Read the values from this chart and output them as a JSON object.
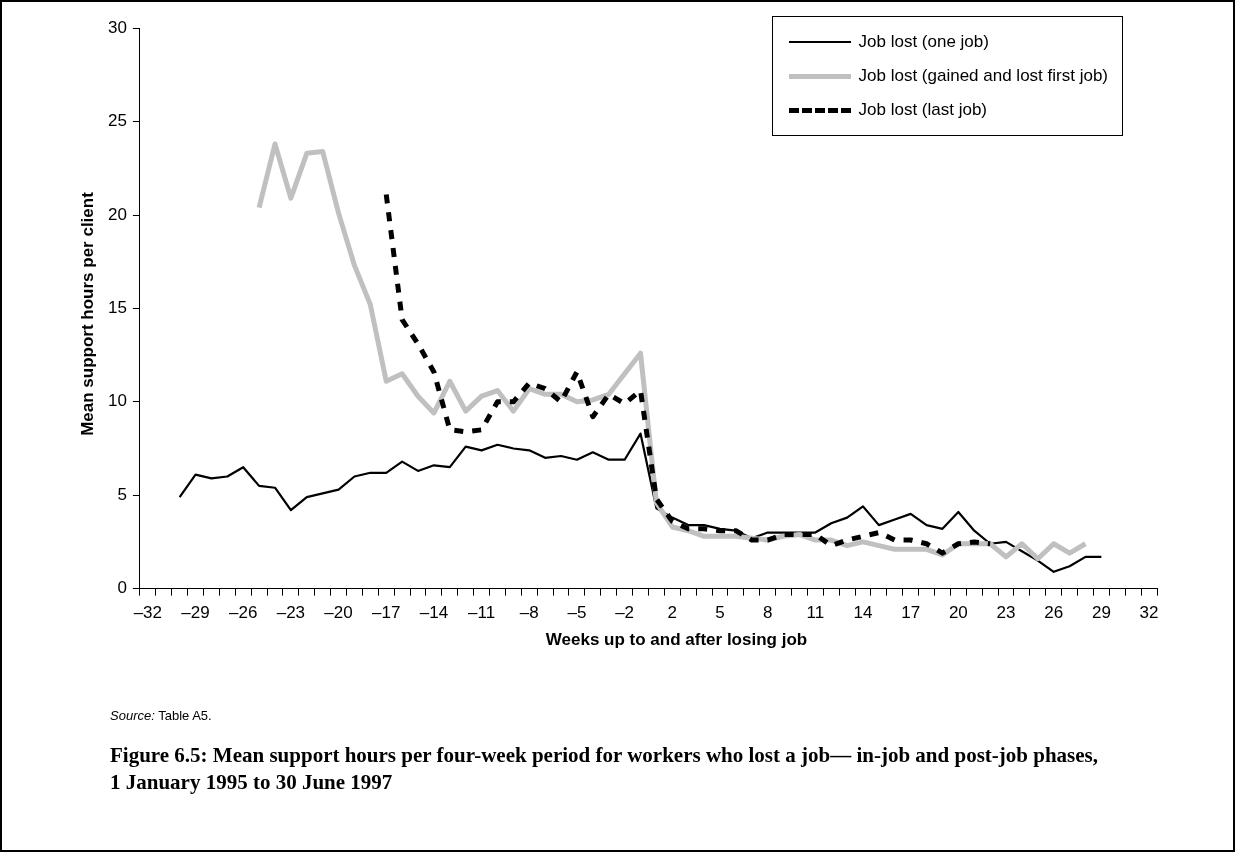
{
  "chart_data": {
    "type": "line",
    "title": "Figure 6.5: Mean support hours per four-week period for workers who lost a job— in-job and post-job phases, 1 January 1995 to 30 June 1997",
    "xlabel": "Weeks up to and after losing job",
    "ylabel": "Mean support hours per client",
    "annotations": [
      "Source: Table A5."
    ],
    "categories": [
      "–32",
      null,
      null,
      "–29",
      null,
      null,
      "–26",
      null,
      null,
      "–23",
      null,
      null,
      "–20",
      null,
      null,
      "–17",
      null,
      null,
      "–14",
      null,
      null,
      "–11",
      null,
      null,
      "–8",
      null,
      null,
      "–5",
      null,
      null,
      "–2",
      null,
      null,
      "2",
      null,
      null,
      "5",
      null,
      null,
      "8",
      null,
      null,
      "11",
      null,
      null,
      "14",
      null,
      null,
      "17",
      null,
      null,
      "20",
      null,
      null,
      "23",
      null,
      null,
      "26",
      null,
      null,
      "29",
      null,
      null,
      "32"
    ],
    "series": [
      {
        "name": "Job lost (one job)",
        "color": "#000000",
        "line_style": "solid",
        "values": [
          null,
          null,
          4.9,
          6.1,
          5.9,
          6.0,
          6.5,
          5.5,
          5.4,
          4.2,
          4.9,
          5.1,
          5.3,
          6.0,
          6.2,
          6.2,
          6.8,
          6.3,
          6.6,
          6.5,
          7.6,
          7.4,
          7.7,
          7.5,
          7.4,
          7.0,
          7.1,
          6.9,
          7.3,
          6.9,
          6.9,
          8.3,
          4.3,
          3.8,
          3.4,
          3.4,
          3.2,
          3.1,
          2.7,
          3.0,
          3.0,
          3.0,
          3.0,
          3.5,
          3.8,
          4.4,
          3.4,
          3.7,
          4.0,
          3.4,
          3.2,
          4.1,
          3.1,
          2.4,
          2.5,
          2.0,
          1.5,
          0.9,
          1.2,
          1.7,
          1.7,
          null,
          null,
          null
        ]
      },
      {
        "name": "Job lost (gained and lost first job)",
        "color": "#c0c0c0",
        "line_style": "solid",
        "values": [
          null,
          null,
          null,
          null,
          null,
          null,
          null,
          20.4,
          23.8,
          20.9,
          23.3,
          23.4,
          20.1,
          17.3,
          15.2,
          11.1,
          11.5,
          10.3,
          9.4,
          11.1,
          9.5,
          10.3,
          10.6,
          9.5,
          10.7,
          10.4,
          10.4,
          10.0,
          10.1,
          10.4,
          11.5,
          12.6,
          4.6,
          3.3,
          3.1,
          2.8,
          2.8,
          2.8,
          2.7,
          2.6,
          2.8,
          2.9,
          2.6,
          2.6,
          2.3,
          2.5,
          2.3,
          2.1,
          2.1,
          2.1,
          1.8,
          2.4,
          2.4,
          2.4,
          1.7,
          2.4,
          1.6,
          2.4,
          1.9,
          2.4,
          null,
          null,
          null,
          null
        ]
      },
      {
        "name": "Job lost (last job)",
        "color": "#000000",
        "line_style": "dashed",
        "values": [
          null,
          null,
          null,
          null,
          null,
          null,
          null,
          null,
          null,
          null,
          null,
          null,
          null,
          null,
          null,
          21.1,
          14.4,
          13.1,
          11.6,
          8.5,
          8.4,
          8.5,
          10.0,
          10.0,
          11.0,
          10.7,
          10.0,
          11.6,
          9.2,
          10.4,
          9.9,
          10.6,
          4.8,
          3.6,
          3.2,
          3.2,
          3.1,
          3.1,
          2.6,
          2.6,
          2.9,
          2.9,
          2.9,
          2.3,
          2.6,
          2.8,
          3.0,
          2.6,
          2.6,
          2.4,
          1.9,
          2.4,
          2.5,
          2.4,
          null,
          null,
          null,
          null,
          null,
          null,
          null,
          null,
          null,
          null
        ]
      }
    ],
    "ylim": [
      0,
      30
    ],
    "yticks": [
      0,
      5,
      10,
      15,
      20,
      25,
      30
    ],
    "grid": false,
    "legend": "top right",
    "marker": "none"
  }
}
